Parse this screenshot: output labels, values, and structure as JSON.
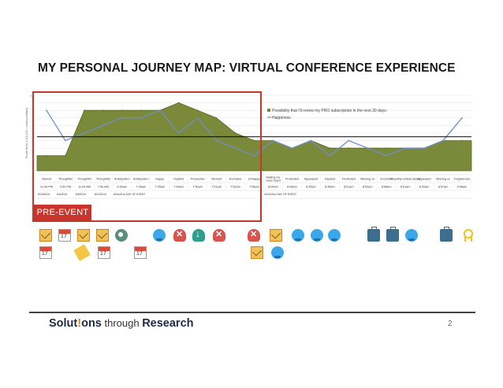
{
  "slide": {
    "title": "MY PERSONAL JOURNEY MAP: VIRTUAL CONFERENCE EXPERIENCE",
    "pre_event_label": "PRE-EVENT",
    "page_number": "2",
    "logo": {
      "part1": "Solut",
      "part2": "!",
      "part3": "ons",
      "tagline": " through ",
      "part4": "Research"
    }
  },
  "colors": {
    "area_fill": "#7a8a3a",
    "area_stroke": "#5a6a28",
    "line": "#6f8fc6",
    "pre_event_box": "#c0392b",
    "pre_event_label_bg": "#c9342c",
    "baseline": "#000000"
  },
  "chart_data": {
    "type": "area",
    "title": "",
    "ylabel": "Scale from 1-10 (10 = most positive)",
    "ylim": [
      0,
      10
    ],
    "grid": true,
    "legend_placement": "right",
    "baseline": 4.5,
    "categories": [
      "Interest",
      "Thoughtful",
      "Thoughtful",
      "Thoughtful",
      "Anticipation",
      "Anticipation",
      "Happy",
      "Hopeful",
      "Productive",
      "Worried",
      "Excluded",
      "Unhappy",
      "Making my voice heard",
      "Frustrated",
      "Appeased",
      "Inspired",
      "Frustrated",
      "Missing ox",
      "Excluded",
      "Possibly embarrassed",
      "Appeased",
      "Missing ox",
      "Forgiveness"
    ],
    "times": [
      "12:43 PM",
      "2:00 PM",
      "11:00 AM",
      "7:50 AM",
      "6:30am",
      "7:30am",
      "7:35am",
      "7:40am",
      "7:50am",
      "7:51am",
      "7:52am",
      "7:55am",
      "8:04am",
      "8:08am",
      "8:25am",
      "8:35am",
      "8:51am",
      "8:52am",
      "8:58am",
      "8:51am",
      "8:52am",
      "8:57am",
      "9:08am"
    ],
    "dates": [
      "5/23/2014",
      "6/3/2014",
      "6/9/2014",
      "6/12/2014",
      "6/14/2014 DAY OF EVENT",
      "",
      "",
      "",
      "",
      "",
      "",
      "",
      "6/13/2014 DAY OF EVENT",
      "",
      "",
      "",
      "",
      "",
      "",
      "",
      "",
      "",
      ""
    ],
    "series": [
      {
        "name": "Possibility that I'll renew my PRO subscription in the next 30 days:",
        "type": "area",
        "values": [
          2,
          2,
          8,
          8,
          8,
          8,
          8,
          9,
          8,
          7,
          5,
          4,
          4,
          3,
          4,
          3,
          3,
          3,
          3,
          3,
          3,
          4,
          4
        ]
      },
      {
        "name": "Happiness",
        "type": "line",
        "values": [
          8,
          4,
          5,
          6,
          7,
          7,
          8,
          5,
          7,
          4,
          3,
          2,
          4,
          3,
          4,
          2,
          4,
          3,
          2,
          3,
          3,
          4,
          7
        ]
      }
    ]
  },
  "icons": {
    "row1": [
      "mail-icon",
      "calendar-icon",
      "mail-icon",
      "mail-icon",
      "camera-icon",
      "bird-icon",
      "cloud-x-icon",
      "cloud-download-icon",
      "cloud-x-icon",
      "cloud-x-icon",
      "mail-icon",
      "bird-icon",
      "bird-icon",
      "bird-icon",
      "bag-icon",
      "bag-icon",
      "bird-icon",
      "bag-icon",
      "ribbon-icon"
    ],
    "row2": [
      "calendar-icon",
      "tag-icon",
      "calendar-icon",
      "calendar-icon",
      "mail-icon",
      "bird-icon"
    ]
  }
}
